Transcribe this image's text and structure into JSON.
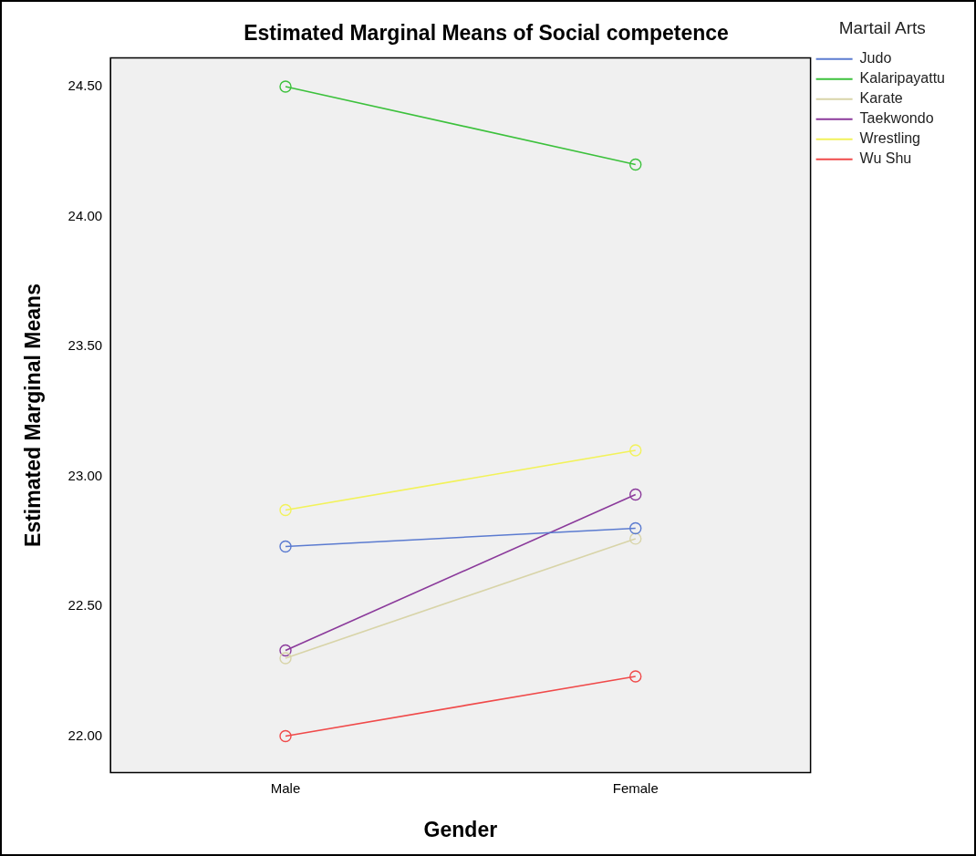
{
  "chart_data": {
    "type": "line",
    "title": "Estimated Marginal Means of Social competence",
    "xlabel": "Gender",
    "ylabel": "Estimated Marginal Means",
    "legend_title": "Martail Arts",
    "categories": [
      "Male",
      "Female"
    ],
    "series": [
      {
        "name": "Judo",
        "color": "#5b7bd0",
        "values": [
          22.73,
          22.8
        ]
      },
      {
        "name": "Kalaripayattu",
        "color": "#3cc13c",
        "values": [
          24.5,
          24.2
        ]
      },
      {
        "name": "Karate",
        "color": "#d8d4a8",
        "values": [
          22.3,
          22.76
        ]
      },
      {
        "name": "Taekwondo",
        "color": "#8b3a9b",
        "values": [
          22.33,
          22.93
        ]
      },
      {
        "name": "Wrestling",
        "color": "#f2f25a",
        "values": [
          22.87,
          23.1
        ]
      },
      {
        "name": "Wu Shu",
        "color": "#f04a4a",
        "values": [
          22.0,
          22.23
        ]
      }
    ],
    "ylim": [
      21.86,
      24.61
    ],
    "yticks": [
      {
        "value": 22,
        "label": "22.00"
      },
      {
        "value": 22.5,
        "label": "22.50"
      },
      {
        "value": 23,
        "label": "23.00"
      },
      {
        "value": 23.5,
        "label": "23.50"
      },
      {
        "value": 24,
        "label": "24.00"
      },
      {
        "value": 24.5,
        "label": "24.50"
      }
    ],
    "grid": false,
    "legend": "top right",
    "marker": "circle",
    "line_style": "solid"
  }
}
